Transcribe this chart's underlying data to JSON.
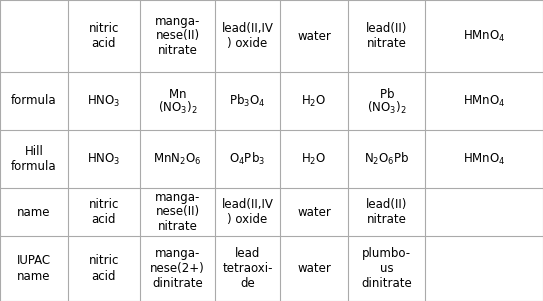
{
  "bg_color": "#ffffff",
  "text_color": "#000000",
  "grid_color": "#aaaaaa",
  "font_size": 8.5,
  "col_edges": [
    0,
    68,
    140,
    215,
    280,
    348,
    425,
    543
  ],
  "row_edges": [
    0,
    72,
    130,
    188,
    236,
    301
  ],
  "col_headers": [
    "",
    "nitric\nacid",
    "manga-\nnese(II)\nnitrate",
    "lead(II,IV\n) oxide",
    "water",
    "lead(II)\nnitrate",
    ""
  ],
  "row_labels": [
    "formula",
    "Hill\nformula",
    "name",
    "IUPAC\nname"
  ],
  "name_row": [
    "nitric\nacid",
    "manga-\nnese(II)\nnitrate",
    "lead(II,IV\n) oxide",
    "water",
    "lead(II)\nnitrate",
    ""
  ],
  "iupac_row": [
    "nitric\nacid",
    "manga-\nnese(2+)\ndinitrate",
    "lead\ntetraoxi-\nde",
    "water",
    "plumbo-\nus\ndinitrate",
    ""
  ]
}
